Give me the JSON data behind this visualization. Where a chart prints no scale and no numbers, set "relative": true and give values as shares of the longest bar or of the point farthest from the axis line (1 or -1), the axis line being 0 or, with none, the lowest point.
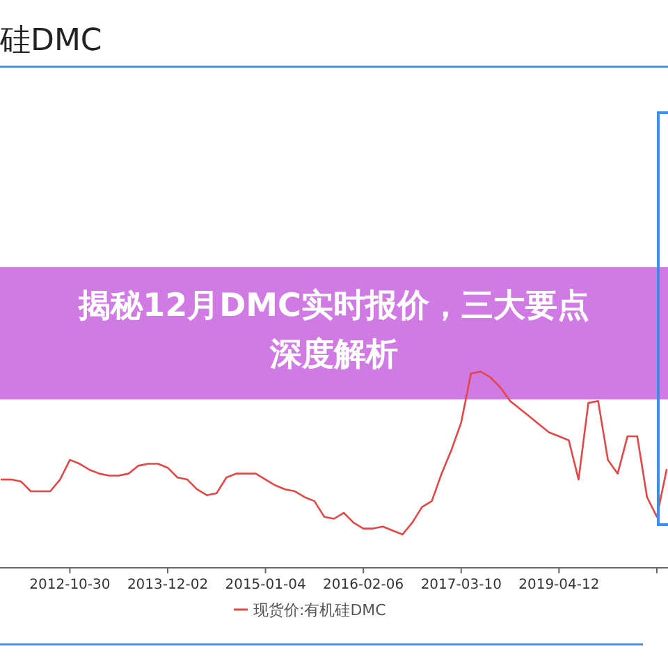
{
  "chart_data": {
    "type": "line",
    "title": "硅DMC",
    "annotations": [
      "揭秘12月DMC实时报价，三大要点深度解析"
    ],
    "relative": true,
    "legend": "bottom",
    "categories": [
      null,
      null,
      null,
      null,
      null,
      null,
      null,
      "2012-10-30",
      null,
      null,
      null,
      null,
      null,
      null,
      null,
      null,
      null,
      "2013-12-02",
      null,
      null,
      null,
      null,
      null,
      null,
      null,
      null,
      null,
      "2015-01-04",
      null,
      null,
      null,
      null,
      null,
      null,
      null,
      null,
      null,
      "2016-02-06",
      null,
      null,
      null,
      null,
      null,
      null,
      null,
      null,
      null,
      "2017-03-10",
      null,
      null,
      null,
      null,
      null,
      null,
      null,
      null,
      null,
      "2019-04-12",
      null,
      null,
      null,
      null,
      null,
      null,
      null,
      null,
      null,
      null,
      null
    ],
    "series": [
      {
        "name": "现货价:有机硅DMC",
        "color": "#e04848",
        "values": [
          0.45,
          0.45,
          0.44,
          0.39,
          0.39,
          0.39,
          0.45,
          0.55,
          0.53,
          0.5,
          0.48,
          0.47,
          0.47,
          0.48,
          0.52,
          0.53,
          0.53,
          0.51,
          0.46,
          0.45,
          0.4,
          0.37,
          0.38,
          0.46,
          0.48,
          0.48,
          0.48,
          0.45,
          0.42,
          0.4,
          0.39,
          0.36,
          0.34,
          0.26,
          0.25,
          0.28,
          0.23,
          0.2,
          0.2,
          0.21,
          0.19,
          0.17,
          0.23,
          0.31,
          0.34,
          0.48,
          0.6,
          0.74,
          0.99,
          1,
          0.97,
          0.92,
          0.85,
          0.81,
          0.77,
          0.73,
          0.69,
          0.67,
          0.65,
          0.45,
          0.84,
          0.85,
          0.55,
          0.48,
          0.67,
          0.67,
          0.36,
          0.26,
          0.5
        ]
      }
    ]
  }
}
